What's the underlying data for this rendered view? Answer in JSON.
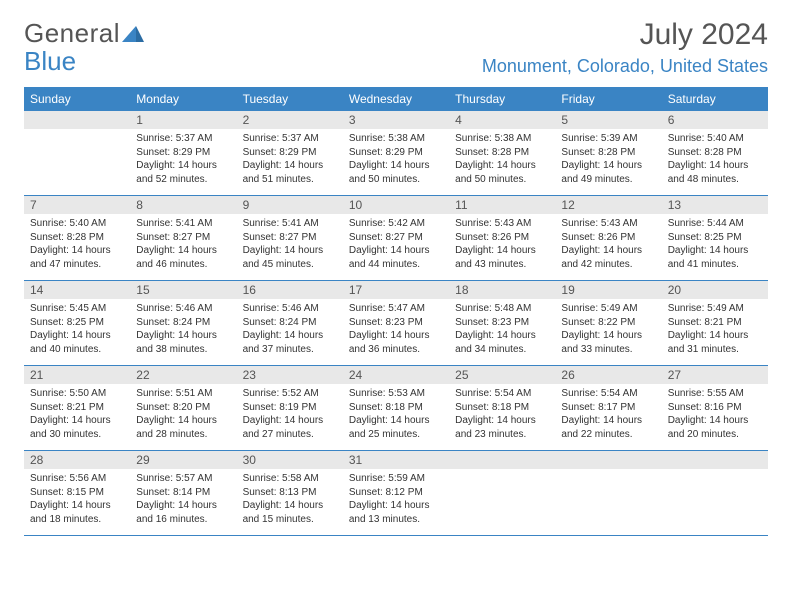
{
  "logo": {
    "word1": "General",
    "word2": "Blue"
  },
  "title": {
    "month": "July 2024",
    "location": "Monument, Colorado, United States"
  },
  "day_names": [
    "Sunday",
    "Monday",
    "Tuesday",
    "Wednesday",
    "Thursday",
    "Friday",
    "Saturday"
  ],
  "colors": {
    "header_bg": "#3a84c4",
    "header_text": "#ffffff",
    "daynum_bg": "#e8e8e8",
    "divider": "#3a84c4",
    "logo_gray": "#555555",
    "logo_blue": "#3a84c4"
  },
  "weeks": [
    [
      {
        "num": "",
        "sunrise": "",
        "sunset": "",
        "daylight": ""
      },
      {
        "num": "1",
        "sunrise": "Sunrise: 5:37 AM",
        "sunset": "Sunset: 8:29 PM",
        "daylight": "Daylight: 14 hours and 52 minutes."
      },
      {
        "num": "2",
        "sunrise": "Sunrise: 5:37 AM",
        "sunset": "Sunset: 8:29 PM",
        "daylight": "Daylight: 14 hours and 51 minutes."
      },
      {
        "num": "3",
        "sunrise": "Sunrise: 5:38 AM",
        "sunset": "Sunset: 8:29 PM",
        "daylight": "Daylight: 14 hours and 50 minutes."
      },
      {
        "num": "4",
        "sunrise": "Sunrise: 5:38 AM",
        "sunset": "Sunset: 8:28 PM",
        "daylight": "Daylight: 14 hours and 50 minutes."
      },
      {
        "num": "5",
        "sunrise": "Sunrise: 5:39 AM",
        "sunset": "Sunset: 8:28 PM",
        "daylight": "Daylight: 14 hours and 49 minutes."
      },
      {
        "num": "6",
        "sunrise": "Sunrise: 5:40 AM",
        "sunset": "Sunset: 8:28 PM",
        "daylight": "Daylight: 14 hours and 48 minutes."
      }
    ],
    [
      {
        "num": "7",
        "sunrise": "Sunrise: 5:40 AM",
        "sunset": "Sunset: 8:28 PM",
        "daylight": "Daylight: 14 hours and 47 minutes."
      },
      {
        "num": "8",
        "sunrise": "Sunrise: 5:41 AM",
        "sunset": "Sunset: 8:27 PM",
        "daylight": "Daylight: 14 hours and 46 minutes."
      },
      {
        "num": "9",
        "sunrise": "Sunrise: 5:41 AM",
        "sunset": "Sunset: 8:27 PM",
        "daylight": "Daylight: 14 hours and 45 minutes."
      },
      {
        "num": "10",
        "sunrise": "Sunrise: 5:42 AM",
        "sunset": "Sunset: 8:27 PM",
        "daylight": "Daylight: 14 hours and 44 minutes."
      },
      {
        "num": "11",
        "sunrise": "Sunrise: 5:43 AM",
        "sunset": "Sunset: 8:26 PM",
        "daylight": "Daylight: 14 hours and 43 minutes."
      },
      {
        "num": "12",
        "sunrise": "Sunrise: 5:43 AM",
        "sunset": "Sunset: 8:26 PM",
        "daylight": "Daylight: 14 hours and 42 minutes."
      },
      {
        "num": "13",
        "sunrise": "Sunrise: 5:44 AM",
        "sunset": "Sunset: 8:25 PM",
        "daylight": "Daylight: 14 hours and 41 minutes."
      }
    ],
    [
      {
        "num": "14",
        "sunrise": "Sunrise: 5:45 AM",
        "sunset": "Sunset: 8:25 PM",
        "daylight": "Daylight: 14 hours and 40 minutes."
      },
      {
        "num": "15",
        "sunrise": "Sunrise: 5:46 AM",
        "sunset": "Sunset: 8:24 PM",
        "daylight": "Daylight: 14 hours and 38 minutes."
      },
      {
        "num": "16",
        "sunrise": "Sunrise: 5:46 AM",
        "sunset": "Sunset: 8:24 PM",
        "daylight": "Daylight: 14 hours and 37 minutes."
      },
      {
        "num": "17",
        "sunrise": "Sunrise: 5:47 AM",
        "sunset": "Sunset: 8:23 PM",
        "daylight": "Daylight: 14 hours and 36 minutes."
      },
      {
        "num": "18",
        "sunrise": "Sunrise: 5:48 AM",
        "sunset": "Sunset: 8:23 PM",
        "daylight": "Daylight: 14 hours and 34 minutes."
      },
      {
        "num": "19",
        "sunrise": "Sunrise: 5:49 AM",
        "sunset": "Sunset: 8:22 PM",
        "daylight": "Daylight: 14 hours and 33 minutes."
      },
      {
        "num": "20",
        "sunrise": "Sunrise: 5:49 AM",
        "sunset": "Sunset: 8:21 PM",
        "daylight": "Daylight: 14 hours and 31 minutes."
      }
    ],
    [
      {
        "num": "21",
        "sunrise": "Sunrise: 5:50 AM",
        "sunset": "Sunset: 8:21 PM",
        "daylight": "Daylight: 14 hours and 30 minutes."
      },
      {
        "num": "22",
        "sunrise": "Sunrise: 5:51 AM",
        "sunset": "Sunset: 8:20 PM",
        "daylight": "Daylight: 14 hours and 28 minutes."
      },
      {
        "num": "23",
        "sunrise": "Sunrise: 5:52 AM",
        "sunset": "Sunset: 8:19 PM",
        "daylight": "Daylight: 14 hours and 27 minutes."
      },
      {
        "num": "24",
        "sunrise": "Sunrise: 5:53 AM",
        "sunset": "Sunset: 8:18 PM",
        "daylight": "Daylight: 14 hours and 25 minutes."
      },
      {
        "num": "25",
        "sunrise": "Sunrise: 5:54 AM",
        "sunset": "Sunset: 8:18 PM",
        "daylight": "Daylight: 14 hours and 23 minutes."
      },
      {
        "num": "26",
        "sunrise": "Sunrise: 5:54 AM",
        "sunset": "Sunset: 8:17 PM",
        "daylight": "Daylight: 14 hours and 22 minutes."
      },
      {
        "num": "27",
        "sunrise": "Sunrise: 5:55 AM",
        "sunset": "Sunset: 8:16 PM",
        "daylight": "Daylight: 14 hours and 20 minutes."
      }
    ],
    [
      {
        "num": "28",
        "sunrise": "Sunrise: 5:56 AM",
        "sunset": "Sunset: 8:15 PM",
        "daylight": "Daylight: 14 hours and 18 minutes."
      },
      {
        "num": "29",
        "sunrise": "Sunrise: 5:57 AM",
        "sunset": "Sunset: 8:14 PM",
        "daylight": "Daylight: 14 hours and 16 minutes."
      },
      {
        "num": "30",
        "sunrise": "Sunrise: 5:58 AM",
        "sunset": "Sunset: 8:13 PM",
        "daylight": "Daylight: 14 hours and 15 minutes."
      },
      {
        "num": "31",
        "sunrise": "Sunrise: 5:59 AM",
        "sunset": "Sunset: 8:12 PM",
        "daylight": "Daylight: 14 hours and 13 minutes."
      },
      {
        "num": "",
        "sunrise": "",
        "sunset": "",
        "daylight": ""
      },
      {
        "num": "",
        "sunrise": "",
        "sunset": "",
        "daylight": ""
      },
      {
        "num": "",
        "sunrise": "",
        "sunset": "",
        "daylight": ""
      }
    ]
  ]
}
